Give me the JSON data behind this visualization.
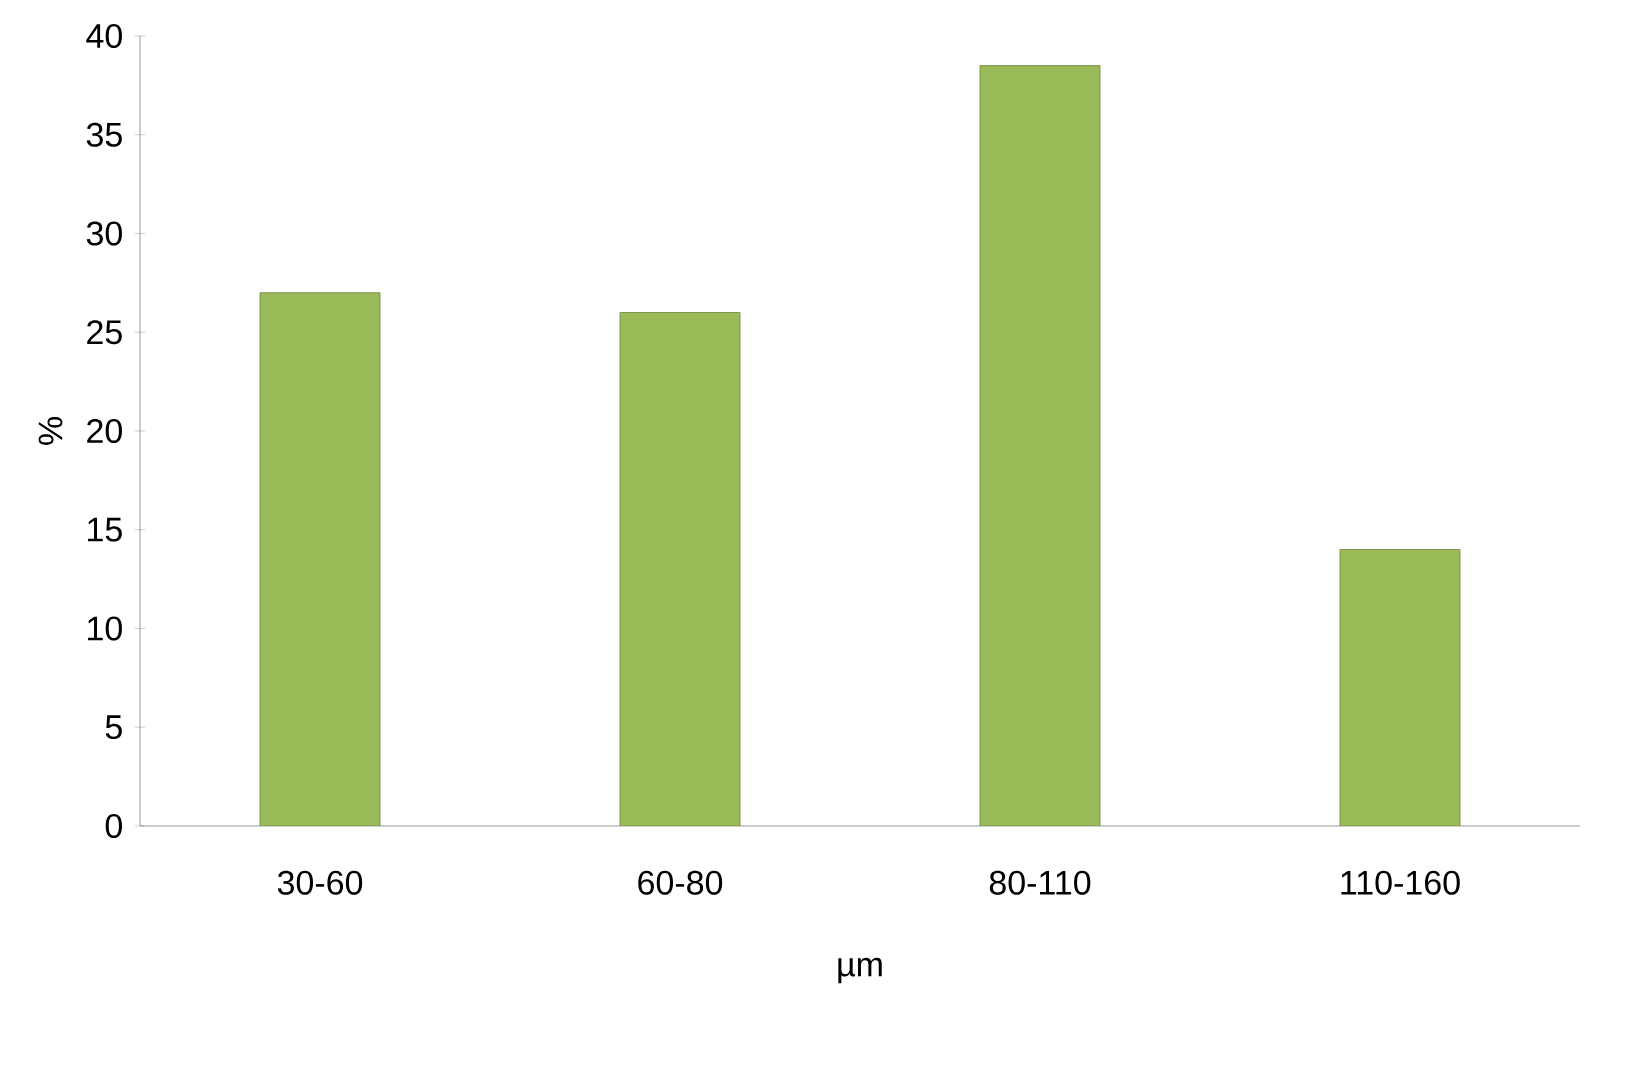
{
  "chart_data": {
    "type": "bar",
    "xlabel": "µm",
    "ylabel": "%",
    "categories": [
      "30-60",
      "60-80",
      "80-110",
      "110-160"
    ],
    "values": [
      27,
      26,
      38.5,
      14
    ],
    "color": "#9bbb59",
    "ylim": [
      0,
      40
    ],
    "yticks": [
      0,
      5,
      10,
      15,
      20,
      25,
      30,
      35,
      40
    ],
    "grid": false
  }
}
